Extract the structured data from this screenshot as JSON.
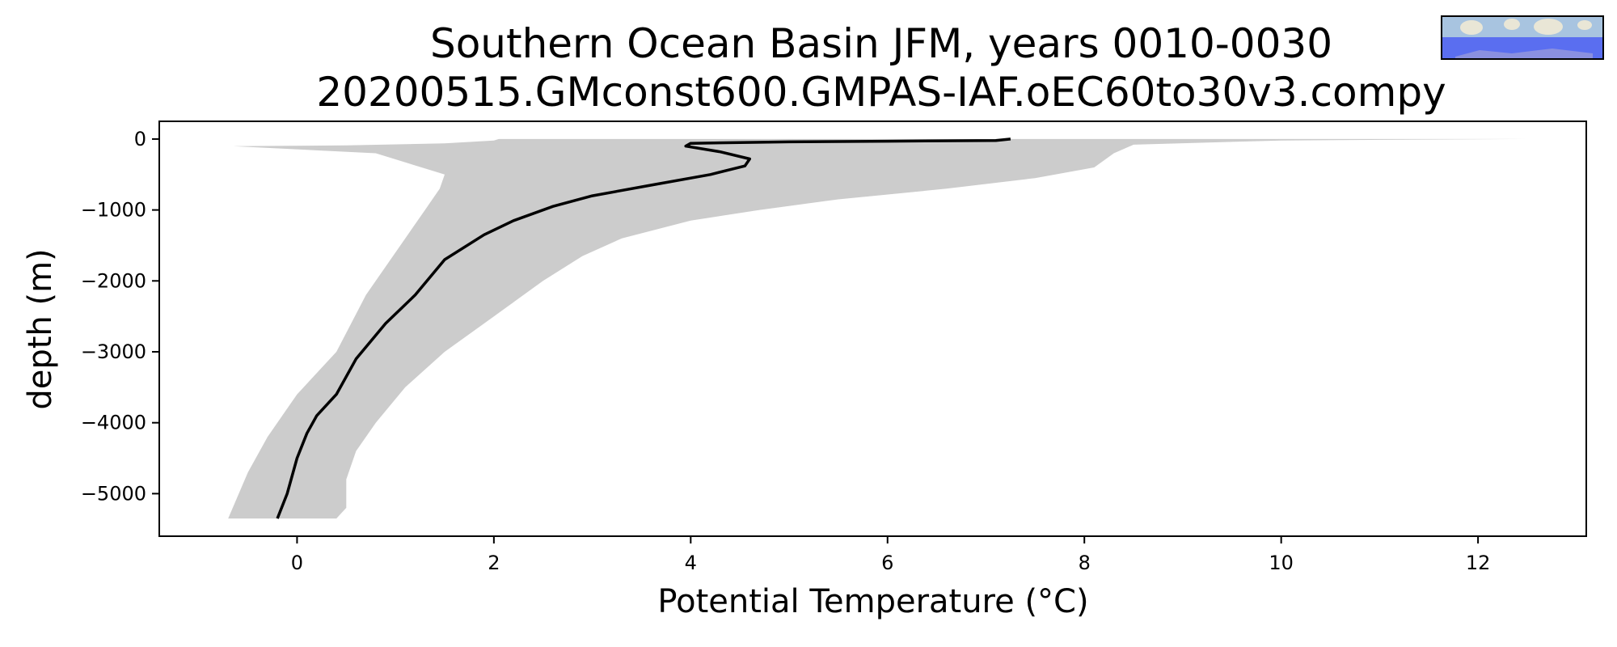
{
  "chart_data": {
    "type": "line",
    "title": "Southern Ocean Basin JFM, years 0010-0030",
    "subtitle": "20200515.GMconst600.GMPAS-IAF.oEC60to30v3.compy",
    "xlabel": "Potential Temperature (°C)",
    "ylabel": "depth (m)",
    "xlim": [
      -1.4,
      13.1
    ],
    "ylim": [
      -5600,
      250
    ],
    "xticks": [
      0,
      2,
      4,
      6,
      8,
      10,
      12
    ],
    "yticks": [
      0,
      -1000,
      -2000,
      -3000,
      -4000,
      -5000
    ],
    "xtick_labels": [
      "0",
      "2",
      "4",
      "6",
      "8",
      "10",
      "12"
    ],
    "ytick_labels": [
      "0",
      "−1000",
      "−2000",
      "−3000",
      "−4000",
      "−5000"
    ],
    "grid": false,
    "colors": {
      "mean_line": "#000000",
      "range_fill": "#cccccc"
    },
    "mean_profile": {
      "x": [
        7.25,
        7.1,
        6.0,
        5.0,
        4.0,
        3.95,
        4.3,
        4.6,
        4.55,
        4.2,
        3.6,
        3.0,
        2.6,
        2.2,
        1.9,
        1.5,
        1.2,
        0.9,
        0.6,
        0.4,
        0.2,
        0.1,
        0.0,
        -0.1,
        -0.2
      ],
      "y": [
        0,
        -20,
        -30,
        -40,
        -60,
        -100,
        -180,
        -280,
        -380,
        -500,
        -650,
        -800,
        -950,
        -1150,
        -1350,
        -1700,
        -2200,
        -2600,
        -3100,
        -3600,
        -3900,
        -4150,
        -4500,
        -5000,
        -5350
      ]
    },
    "range_band": {
      "max_x": [
        12.5,
        10.0,
        8.5,
        8.3,
        8.1,
        7.5,
        6.6,
        5.5,
        4.7,
        4.0,
        3.3,
        2.9,
        2.5,
        2.0,
        1.5,
        1.1,
        0.8,
        0.6,
        0.5,
        0.5,
        0.4
      ],
      "max_y": [
        0,
        -20,
        -80,
        -200,
        -400,
        -550,
        -700,
        -850,
        -1000,
        -1150,
        -1400,
        -1650,
        -2000,
        -2500,
        -3000,
        -3500,
        -4000,
        -4400,
        -4800,
        -5200,
        -5350
      ],
      "min_x": [
        -0.65,
        0.8,
        1.5,
        1.45,
        1.3,
        1.0,
        0.7,
        0.4,
        0.0,
        -0.3,
        -0.5,
        -0.7
      ],
      "min_y": [
        -100,
        -200,
        -500,
        -700,
        -1000,
        -1600,
        -2200,
        -3000,
        -3600,
        -4200,
        -4700,
        -5350
      ],
      "top_x": [
        -0.65,
        0.5,
        1.5,
        2.0,
        2.05
      ],
      "top_y": [
        -100,
        -90,
        -60,
        -20,
        0
      ]
    }
  }
}
